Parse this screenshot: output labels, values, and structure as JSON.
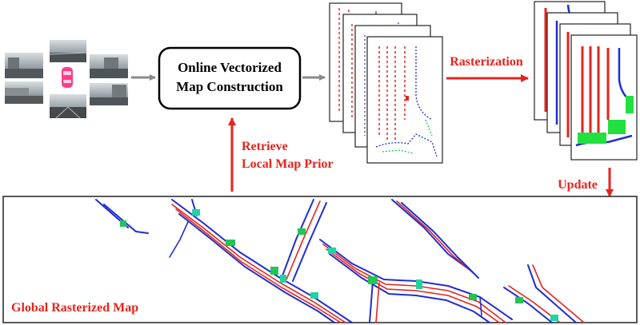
{
  "center_box": {
    "line1": "Online Vectorized",
    "line2": "Map Construction"
  },
  "labels": {
    "rasterization": "Rasterization",
    "retrieve_line1": "Retrieve",
    "retrieve_line2": "Local Map Prior",
    "update": "Update",
    "global_map": "Global Rasterized Map"
  },
  "colors": {
    "accent_red": "#e8231c",
    "divider_blue": "#1f2fd0",
    "boundary_green": "#22c455",
    "arrow_gray": "#8a8a8a",
    "car_pink": "#ff3d8b"
  },
  "icons": [
    "camera-view-icon",
    "car-icon"
  ]
}
